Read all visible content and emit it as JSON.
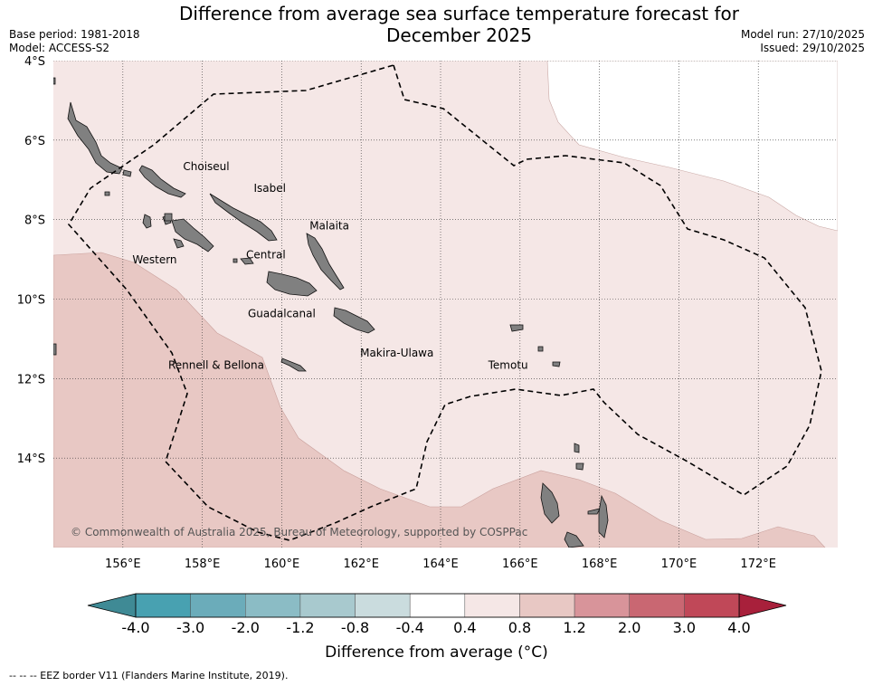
{
  "title_line1": "Difference from average sea surface temperature forecast for",
  "title_line2": "December 2025",
  "meta_left": {
    "base_period": "Base period: 1981-2018",
    "model": "Model: ACCESS-S2"
  },
  "meta_right": {
    "model_run": "Model run: 27/10/2025",
    "issued": "Issued: 29/10/2025"
  },
  "map": {
    "lon_range": [
      154.25,
      174.0
    ],
    "lat_range": [
      -16.25,
      -4.0
    ],
    "lat_ticks": [
      {
        "value": -4,
        "label": "4°S"
      },
      {
        "value": -6,
        "label": "6°S"
      },
      {
        "value": -8,
        "label": "8°S"
      },
      {
        "value": -10,
        "label": "10°S"
      },
      {
        "value": -12,
        "label": "12°S"
      },
      {
        "value": -14,
        "label": "14°S"
      }
    ],
    "lon_ticks": [
      {
        "value": 156,
        "label": "156°E"
      },
      {
        "value": 158,
        "label": "158°E"
      },
      {
        "value": 160,
        "label": "160°E"
      },
      {
        "value": 162,
        "label": "162°E"
      },
      {
        "value": 164,
        "label": "164°E"
      },
      {
        "value": 166,
        "label": "166°E"
      },
      {
        "value": 168,
        "label": "168°E"
      },
      {
        "value": 170,
        "label": "170°E"
      },
      {
        "value": 172,
        "label": "172°E"
      }
    ],
    "regions": [
      {
        "name": "Choiseul",
        "lon": 158.1,
        "lat": -6.75
      },
      {
        "name": "Isabel",
        "lon": 159.7,
        "lat": -7.3
      },
      {
        "name": "Malaita",
        "lon": 161.2,
        "lat": -8.25
      },
      {
        "name": "Western",
        "lon": 156.8,
        "lat": -9.1
      },
      {
        "name": "Central",
        "lon": 159.6,
        "lat": -8.98
      },
      {
        "name": "Guadalcanal",
        "lon": 160.0,
        "lat": -10.45
      },
      {
        "name": "Makira-Ulawa",
        "lon": 162.9,
        "lat": -11.45
      },
      {
        "name": "Rennell & Bellona",
        "lon": 158.35,
        "lat": -11.75
      },
      {
        "name": "Temotu",
        "lon": 165.7,
        "lat": -11.75
      }
    ],
    "copyright": "© Commonwealth of Australia 2025, Bureau of Meteorology, supported by COSPPac"
  },
  "colorbar": {
    "labels": [
      "-4.0",
      "-3.0",
      "-2.0",
      "-1.2",
      "-0.8",
      "-0.4",
      "0.4",
      "0.8",
      "1.2",
      "2.0",
      "3.0",
      "4.0"
    ],
    "colors": [
      "#48a1b1",
      "#6bacba",
      "#8bbcc5",
      "#a8c9ce",
      "#cadcde",
      "#ffffff",
      "#f5e7e6",
      "#e8c8c4",
      "#d8949a",
      "#c96772",
      "#c04858"
    ],
    "extend_low_color": "#3f8a95",
    "extend_high_color": "#a8203b",
    "title": "Difference from average (°C)"
  },
  "colors": {
    "band_04_08": "#f5e7e6",
    "band_08_12": "#e8c8c4",
    "land": "#808080",
    "eez_line": "#000000"
  },
  "footnote": "--  --  -- EEZ border V11 (Flanders Marine Institute, 2019)."
}
